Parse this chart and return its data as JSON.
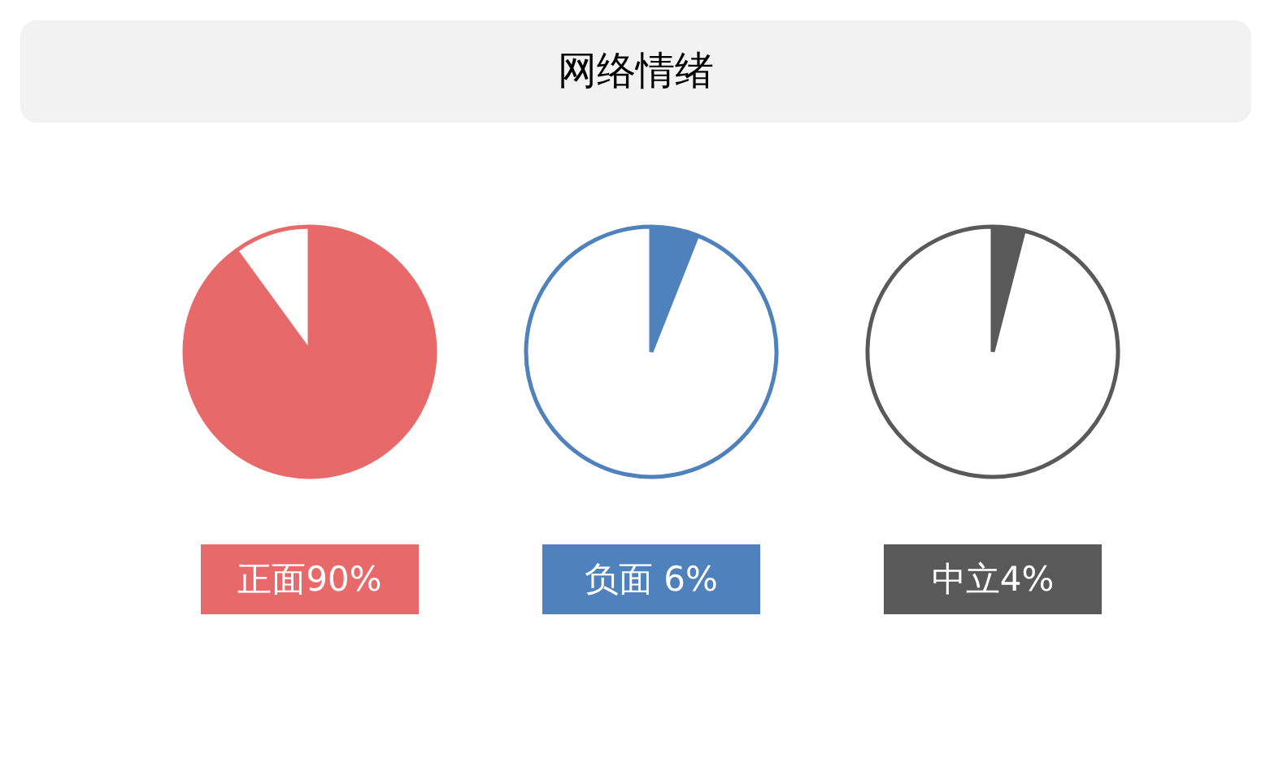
{
  "chart_data": [
    {
      "type": "other",
      "title": "网络情绪"
    },
    {
      "type": "pie",
      "categories": [
        null,
        null
      ],
      "values": [
        90,
        10
      ],
      "colors": [
        "#e8696a",
        "#ffffff"
      ],
      "annotations": [
        "正面90%"
      ]
    },
    {
      "type": "pie",
      "categories": [
        null,
        null
      ],
      "values": [
        6,
        94
      ],
      "colors": [
        "#4f81bd",
        "#ffffff"
      ],
      "annotations": [
        "负面 6%"
      ]
    },
    {
      "type": "pie",
      "categories": [
        null,
        null
      ],
      "values": [
        4,
        96
      ],
      "colors": [
        "#595959",
        "#ffffff"
      ],
      "annotations": [
        "中立4%"
      ]
    }
  ]
}
